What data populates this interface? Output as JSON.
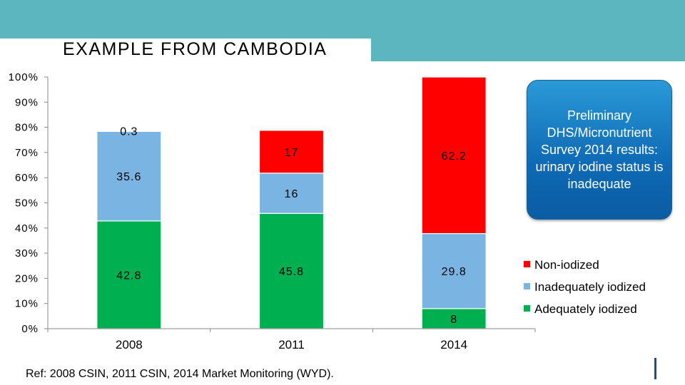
{
  "slide": {
    "title": "EXAMPLE FROM  CAMBODIA",
    "reference": "Ref: 2008 CSIN, 2011 CSIN, 2014 Market Monitoring (WYD).",
    "callout": "Preliminary DHS/Micronutrient Survey 2014 results: urinary iodine status is inadequate",
    "colors": {
      "band": "#5bb6c0",
      "callout": "#0e6ab5",
      "accent": "#1b4f8a"
    }
  },
  "chart_data": {
    "type": "bar",
    "stacked": true,
    "percent_stacked": true,
    "categories": [
      "2008",
      "2011",
      "2014"
    ],
    "y_ticks": [
      "0%",
      "10%",
      "20%",
      "30%",
      "40%",
      "50%",
      "60%",
      "70%",
      "80%",
      "90%",
      "100%"
    ],
    "ylim": [
      0,
      100
    ],
    "legend_position": "right",
    "grid": false,
    "series": [
      {
        "name": "Adequately iodized",
        "color": "#00b050",
        "values": [
          42.8,
          45.8,
          8
        ],
        "labels": [
          "42.8",
          "45.8",
          "8"
        ]
      },
      {
        "name": "Inadequately iodized",
        "color": "#7ab4e2",
        "values": [
          35.6,
          16,
          29.8
        ],
        "labels": [
          "35.6",
          "16",
          "29.8"
        ]
      },
      {
        "name": "Non-iodized",
        "color": "#ff0000",
        "values": [
          0.3,
          17,
          62.2
        ],
        "labels": [
          "0.3",
          "17",
          "62.2"
        ]
      }
    ],
    "legend_order": [
      "Non-iodized",
      "Inadequately iodized",
      "Adequately iodized"
    ]
  }
}
